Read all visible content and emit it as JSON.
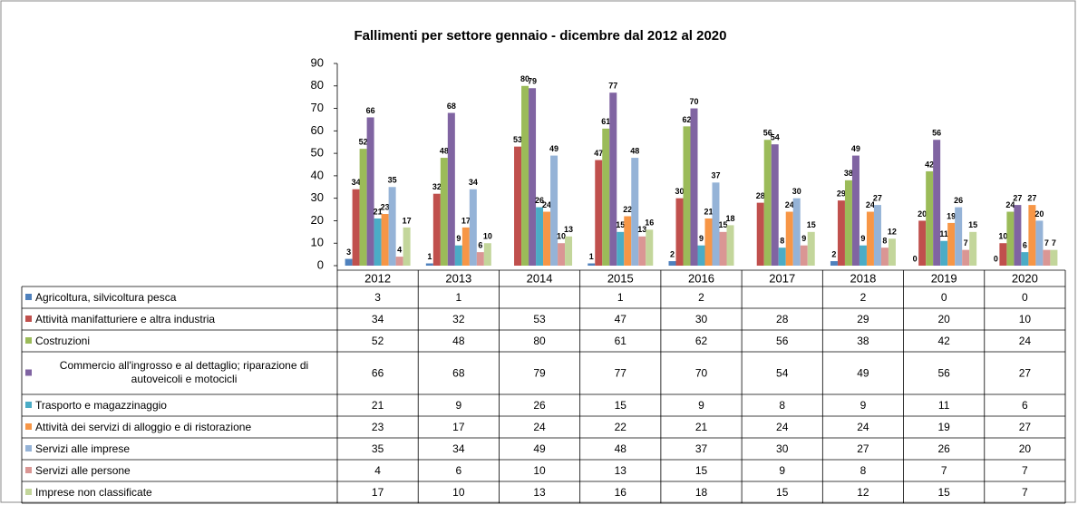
{
  "chart_data": {
    "type": "bar",
    "title": "Fallimenti per settore gennaio - dicembre dal 2012 al 2020",
    "categories": [
      "2012",
      "2013",
      "2014",
      "2015",
      "2016",
      "2017",
      "2018",
      "2019",
      "2020"
    ],
    "ylim": [
      0,
      90
    ],
    "yticks": [
      0,
      10,
      20,
      30,
      40,
      50,
      60,
      70,
      80,
      90
    ],
    "grid": false,
    "series": [
      {
        "name": "Agricoltura, silvicoltura pesca",
        "color": "#4F81BD",
        "values": [
          3,
          1,
          null,
          1,
          2,
          null,
          2,
          0,
          0
        ]
      },
      {
        "name": "Attività manifatturiere e altra industria",
        "color": "#C0504D",
        "values": [
          34,
          32,
          53,
          47,
          30,
          28,
          29,
          20,
          10
        ]
      },
      {
        "name": "Costruzioni",
        "color": "#9BBB59",
        "values": [
          52,
          48,
          80,
          61,
          62,
          56,
          38,
          42,
          24
        ]
      },
      {
        "name": "Commercio all'ingrosso e al dettaglio; riparazione di autoveicoli e motocicli",
        "color": "#8064A2",
        "values": [
          66,
          68,
          79,
          77,
          70,
          54,
          49,
          56,
          27
        ]
      },
      {
        "name": "Trasporto e magazzinaggio",
        "color": "#4BACC6",
        "values": [
          21,
          9,
          26,
          15,
          9,
          8,
          9,
          11,
          6
        ]
      },
      {
        "name": "Attività dei servizi di alloggio e di ristorazione",
        "color": "#F79646",
        "values": [
          23,
          17,
          24,
          22,
          21,
          24,
          24,
          19,
          27
        ]
      },
      {
        "name": "Servizi alle imprese",
        "color": "#95B3D7",
        "values": [
          35,
          34,
          49,
          48,
          37,
          30,
          27,
          26,
          20
        ]
      },
      {
        "name": "Servizi alle persone",
        "color": "#DA9694",
        "values": [
          4,
          6,
          10,
          13,
          15,
          9,
          8,
          7,
          7
        ]
      },
      {
        "name": "Imprese non classificate",
        "color": "#C3D69B",
        "values": [
          17,
          10,
          13,
          16,
          18,
          15,
          12,
          15,
          7
        ]
      }
    ]
  }
}
